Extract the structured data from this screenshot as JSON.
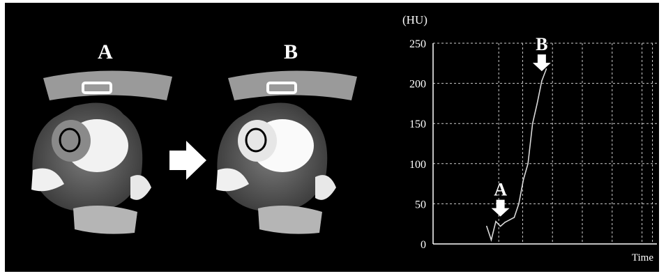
{
  "figure": {
    "left_label_a": "A",
    "left_label_b": "B"
  },
  "colors": {
    "background": "#000000",
    "line": "#d9d9d9",
    "grid": "#cfcfcf",
    "arrow": "#ffffff"
  },
  "chart_data": {
    "type": "line",
    "y_unit_label": "(HU)",
    "xlabel": "Time",
    "ylabel": "",
    "title": "",
    "ylim": [
      0,
      250
    ],
    "yticks": [
      0,
      50,
      100,
      150,
      200,
      250
    ],
    "x": [
      1,
      2,
      3,
      4,
      5,
      6,
      7,
      8,
      9,
      10,
      11,
      12,
      13,
      14
    ],
    "series": [
      {
        "values": [
          22,
          5,
          28,
          22,
          27,
          30,
          33,
          50,
          80,
          100,
          150,
          175,
          203,
          218
        ]
      }
    ],
    "grid": true,
    "annotations": [
      {
        "label": "A",
        "x": 4,
        "y": 22
      },
      {
        "label": "B",
        "x": 13,
        "y": 203
      }
    ]
  }
}
